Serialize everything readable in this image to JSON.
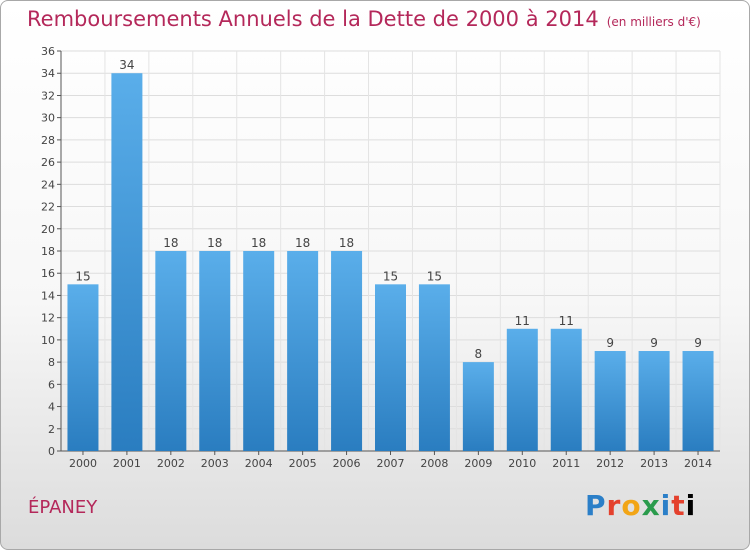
{
  "header": {
    "title": "Remboursements Annuels de la Dette de 2000 à 2014",
    "unit": "(en milliers d'€)"
  },
  "footer": {
    "town": "ÉPANEY",
    "logo_letters": [
      "P",
      "r",
      "o",
      "x",
      "i",
      "t",
      "i"
    ]
  },
  "colors": {
    "title": "#b4285a",
    "bar_top": "#5aaeea",
    "bar_bottom": "#2a7dc0"
  },
  "chart_data": {
    "type": "bar",
    "title": "Remboursements Annuels de la Dette de 2000 à 2014",
    "xlabel": "",
    "ylabel": "",
    "categories": [
      "2000",
      "2001",
      "2002",
      "2003",
      "2004",
      "2005",
      "2006",
      "2007",
      "2008",
      "2009",
      "2010",
      "2011",
      "2012",
      "2013",
      "2014"
    ],
    "values": [
      15,
      34,
      18,
      18,
      18,
      18,
      18,
      15,
      15,
      8,
      11,
      11,
      9,
      9,
      9
    ],
    "ylim": [
      0,
      36
    ],
    "yticks": [
      0,
      2,
      4,
      6,
      8,
      10,
      12,
      14,
      16,
      18,
      20,
      22,
      24,
      26,
      28,
      30,
      32,
      34,
      36
    ],
    "grid": true,
    "legend": "none"
  }
}
